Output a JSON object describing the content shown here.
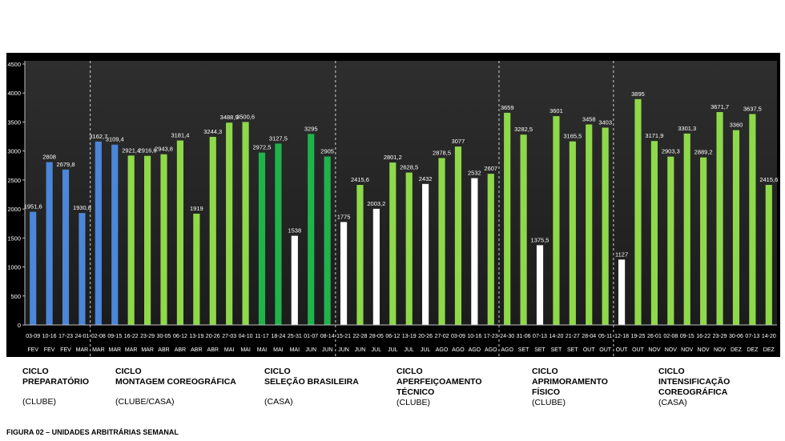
{
  "chart_data": {
    "type": "bar",
    "ylim": [
      0,
      4500
    ],
    "yticks": [
      0,
      500,
      1000,
      1500,
      2000,
      2500,
      3000,
      3500,
      4000,
      4500
    ],
    "grid": false,
    "colors": {
      "blue": "#4b86d8",
      "lightgreen": "#8ed94a",
      "darkgreen": "#1fb34c",
      "white": "#ffffff"
    },
    "bars": [
      {
        "range": "03-09",
        "month": "FEV",
        "value": 1951.6,
        "label": "1951,6",
        "color": "blue"
      },
      {
        "range": "10-16",
        "month": "FEV",
        "value": 2808,
        "label": "2808",
        "color": "blue"
      },
      {
        "range": "17-23",
        "month": "FEV",
        "value": 2679.8,
        "label": "2679,8",
        "color": "blue"
      },
      {
        "range": "24-01",
        "month": "MAR",
        "value": 1930.8,
        "label": "1930,8",
        "color": "blue"
      },
      {
        "range": "02-08",
        "month": "MAR",
        "value": 3162.7,
        "label": "3162,7",
        "color": "blue"
      },
      {
        "range": "09-15",
        "month": "MAR",
        "value": 3109.4,
        "label": "3109,4",
        "color": "blue"
      },
      {
        "range": "16-22",
        "month": "MAR",
        "value": 2921.4,
        "label": "2921,4",
        "color": "lightgreen"
      },
      {
        "range": "23-29",
        "month": "MAR",
        "value": 2916.6,
        "label": "2916,6",
        "color": "lightgreen"
      },
      {
        "range": "30-05",
        "month": "ABR",
        "value": 2943.8,
        "label": "2943,8",
        "color": "lightgreen"
      },
      {
        "range": "06-12",
        "month": "ABR",
        "value": 3181.4,
        "label": "3181,4",
        "color": "lightgreen"
      },
      {
        "range": "13-19",
        "month": "ABR",
        "value": 1919,
        "label": "1919",
        "color": "lightgreen"
      },
      {
        "range": "20-26",
        "month": "ABR",
        "value": 3244.3,
        "label": "3244,3",
        "color": "lightgreen"
      },
      {
        "range": "27-03",
        "month": "MAI",
        "value": 3488.9,
        "label": "3488,9",
        "color": "lightgreen"
      },
      {
        "range": "04-10",
        "month": "MAI",
        "value": 3500.6,
        "label": "3500,6",
        "color": "lightgreen"
      },
      {
        "range": "11-17",
        "month": "MAI",
        "value": 2972.5,
        "label": "2972,5",
        "color": "darkgreen"
      },
      {
        "range": "18-24",
        "month": "MAI",
        "value": 3127.5,
        "label": "3127,5",
        "color": "darkgreen"
      },
      {
        "range": "25-31",
        "month": "MAI",
        "value": 1538,
        "label": "1538",
        "color": "white"
      },
      {
        "range": "01-07",
        "month": "JUN",
        "value": 3295,
        "label": "3295",
        "color": "darkgreen"
      },
      {
        "range": "08-14",
        "month": "JUN",
        "value": 2905,
        "label": "2905",
        "color": "darkgreen"
      },
      {
        "range": "15-21",
        "month": "JUN",
        "value": 1775,
        "label": "1775",
        "color": "white"
      },
      {
        "range": "22-28",
        "month": "JUN",
        "value": 2415.6,
        "label": "2415,6",
        "color": "lightgreen"
      },
      {
        "range": "28-05",
        "month": "JUL",
        "value": 2003.2,
        "label": "2003,2",
        "color": "white"
      },
      {
        "range": "06-12",
        "month": "JUL",
        "value": 2801.2,
        "label": "2801,2",
        "color": "lightgreen"
      },
      {
        "range": "13-19",
        "month": "JUL",
        "value": 2628.5,
        "label": "2628,5",
        "color": "lightgreen"
      },
      {
        "range": "20-26",
        "month": "JUL",
        "value": 2432,
        "label": "2432",
        "color": "white"
      },
      {
        "range": "27-02",
        "month": "AGO",
        "value": 2878.5,
        "label": "2878,5",
        "color": "lightgreen"
      },
      {
        "range": "03-09",
        "month": "AGO",
        "value": 3077,
        "label": "3077",
        "color": "lightgreen"
      },
      {
        "range": "10-16",
        "month": "AGO",
        "value": 2532,
        "label": "2532",
        "color": "white"
      },
      {
        "range": "17-23",
        "month": "AGO",
        "value": 2607,
        "label": "2607",
        "color": "lightgreen"
      },
      {
        "range": "24-30",
        "month": "AGO",
        "value": 3659,
        "label": "3659",
        "color": "lightgreen"
      },
      {
        "range": "31-06",
        "month": "SET",
        "value": 3282.5,
        "label": "3282,5",
        "color": "lightgreen"
      },
      {
        "range": "07-13",
        "month": "SET",
        "value": 1375.5,
        "label": "1375,5",
        "color": "white"
      },
      {
        "range": "14-20",
        "month": "SET",
        "value": 3601,
        "label": "3601",
        "color": "lightgreen"
      },
      {
        "range": "21-27",
        "month": "SET",
        "value": 3165.5,
        "label": "3165,5",
        "color": "lightgreen"
      },
      {
        "range": "28-04",
        "month": "OUT",
        "value": 3458,
        "label": "3458",
        "color": "lightgreen"
      },
      {
        "range": "05-11",
        "month": "OUT",
        "value": 3403,
        "label": "3403",
        "color": "lightgreen"
      },
      {
        "range": "12-18",
        "month": "OUT",
        "value": 1127,
        "label": "1127",
        "color": "white"
      },
      {
        "range": "19-25",
        "month": "OUT",
        "value": 3895,
        "label": "3895",
        "color": "lightgreen"
      },
      {
        "range": "26-01",
        "month": "NOV",
        "value": 3171.9,
        "label": "3171,9",
        "color": "lightgreen"
      },
      {
        "range": "02-08",
        "month": "NOV",
        "value": 2903.3,
        "label": "2903,3",
        "color": "lightgreen"
      },
      {
        "range": "09-15",
        "month": "NOV",
        "value": 3301.3,
        "label": "3301,3",
        "color": "lightgreen"
      },
      {
        "range": "16-22",
        "month": "NOV",
        "value": 2889.2,
        "label": "2889,2",
        "color": "lightgreen"
      },
      {
        "range": "23-29",
        "month": "NOV",
        "value": 3671.7,
        "label": "3671,7",
        "color": "lightgreen"
      },
      {
        "range": "30-06",
        "month": "DEZ",
        "value": 3360,
        "label": "3360",
        "color": "lightgreen"
      },
      {
        "range": "07-13",
        "month": "DEZ",
        "value": 3637.5,
        "label": "3637,5",
        "color": "lightgreen"
      },
      {
        "range": "14-20",
        "month": "DEZ",
        "value": 2415.6,
        "label": "2415,6",
        "color": "lightgreen"
      }
    ],
    "separators_after_bar_index": [
      3,
      18,
      28,
      35
    ],
    "cycles": [
      {
        "title": "CICLO\nPREPARATÓRIO",
        "location": "(CLUBE)"
      },
      {
        "title": "CICLO\nMONTAGEM COREOGRÁFICA",
        "location": "(CLUBE/CASA)"
      },
      {
        "title": "CICLO\nSELEÇÃO BRASILEIRA",
        "location": "(CASA)"
      },
      {
        "title": "CICLO\nAPERFEIÇOAMENTO\nTÉCNICO",
        "location": "(CLUBE)"
      },
      {
        "title": "CICLO\nAPRIMORAMENTO\nFÍSICO",
        "location": "(CLUBE)"
      },
      {
        "title": "CICLO\nINTENSIFICAÇÃO\nCOREOGRÁFICA",
        "location": "(CASA)"
      }
    ]
  },
  "caption": "FIGURA 02 – UNIDADES ARBITRÁRIAS SEMANAL"
}
